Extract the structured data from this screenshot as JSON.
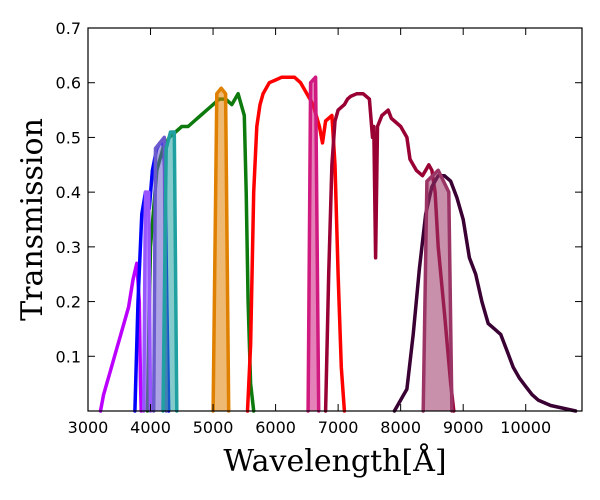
{
  "chart_data": {
    "type": "area",
    "title": "",
    "xlabel": "Wavelength[Å]",
    "ylabel": "Transmission",
    "xlim": [
      3000,
      10900
    ],
    "ylim": [
      0.0,
      0.7
    ],
    "xticks": [
      3000,
      4000,
      5000,
      6000,
      7000,
      8000,
      9000,
      10000
    ],
    "yticks": [
      0.1,
      0.2,
      0.3,
      0.4,
      0.5,
      0.6,
      0.7
    ],
    "grid": false,
    "legend": "none",
    "series": [
      {
        "kind": "broad",
        "color": "#bb00ff",
        "filled": false,
        "points": [
          [
            3200,
            0
          ],
          [
            3250,
            0.03
          ],
          [
            3350,
            0.07
          ],
          [
            3450,
            0.11
          ],
          [
            3550,
            0.15
          ],
          [
            3650,
            0.19
          ],
          [
            3720,
            0.24
          ],
          [
            3780,
            0.27
          ],
          [
            3820,
            0.2
          ],
          [
            3840,
            0.05
          ],
          [
            3850,
            0
          ]
        ]
      },
      {
        "kind": "broad",
        "color": "#0000ff",
        "filled": false,
        "points": [
          [
            3750,
            0
          ],
          [
            3800,
            0.2
          ],
          [
            3860,
            0.36
          ],
          [
            3920,
            0.4
          ],
          [
            3980,
            0.37
          ],
          [
            4030,
            0.44
          ],
          [
            4100,
            0.48
          ],
          [
            4150,
            0.49
          ],
          [
            4200,
            0.49
          ],
          [
            4230,
            0.44
          ],
          [
            4260,
            0.2
          ],
          [
            4290,
            0
          ]
        ]
      },
      {
        "kind": "broad",
        "color": "#0d7a0d",
        "filled": false,
        "points": [
          [
            3950,
            0
          ],
          [
            4000,
            0.3
          ],
          [
            4100,
            0.44
          ],
          [
            4200,
            0.48
          ],
          [
            4300,
            0.5
          ],
          [
            4400,
            0.51
          ],
          [
            4500,
            0.52
          ],
          [
            4600,
            0.52
          ],
          [
            4700,
            0.53
          ],
          [
            4800,
            0.54
          ],
          [
            4900,
            0.55
          ],
          [
            5000,
            0.56
          ],
          [
            5100,
            0.57
          ],
          [
            5200,
            0.57
          ],
          [
            5300,
            0.56
          ],
          [
            5400,
            0.58
          ],
          [
            5450,
            0.56
          ],
          [
            5500,
            0.54
          ],
          [
            5530,
            0.4
          ],
          [
            5560,
            0.2
          ],
          [
            5600,
            0.05
          ],
          [
            5650,
            0
          ]
        ]
      },
      {
        "kind": "broad",
        "color": "#ff0000",
        "filled": false,
        "points": [
          [
            5550,
            0
          ],
          [
            5600,
            0.12
          ],
          [
            5650,
            0.4
          ],
          [
            5700,
            0.52
          ],
          [
            5750,
            0.56
          ],
          [
            5800,
            0.58
          ],
          [
            5900,
            0.6
          ],
          [
            6000,
            0.605
          ],
          [
            6100,
            0.61
          ],
          [
            6200,
            0.61
          ],
          [
            6300,
            0.61
          ],
          [
            6400,
            0.6
          ],
          [
            6500,
            0.58
          ],
          [
            6600,
            0.56
          ],
          [
            6700,
            0.52
          ],
          [
            6750,
            0.49
          ],
          [
            6800,
            0.53
          ],
          [
            6900,
            0.54
          ],
          [
            6950,
            0.45
          ],
          [
            7000,
            0.25
          ],
          [
            7050,
            0.08
          ],
          [
            7100,
            0
          ]
        ]
      },
      {
        "kind": "broad",
        "color": "#990033",
        "filled": false,
        "points": [
          [
            6800,
            0
          ],
          [
            6850,
            0.25
          ],
          [
            6900,
            0.45
          ],
          [
            6950,
            0.53
          ],
          [
            7000,
            0.55
          ],
          [
            7100,
            0.56
          ],
          [
            7150,
            0.57
          ],
          [
            7200,
            0.575
          ],
          [
            7300,
            0.58
          ],
          [
            7400,
            0.58
          ],
          [
            7500,
            0.57
          ],
          [
            7550,
            0.5
          ],
          [
            7570,
            0.52
          ],
          [
            7600,
            0.28
          ],
          [
            7630,
            0.52
          ],
          [
            7700,
            0.54
          ],
          [
            7800,
            0.55
          ],
          [
            7850,
            0.535
          ],
          [
            7900,
            0.53
          ],
          [
            8000,
            0.52
          ],
          [
            8100,
            0.5
          ],
          [
            8150,
            0.46
          ],
          [
            8250,
            0.44
          ],
          [
            8350,
            0.43
          ],
          [
            8400,
            0.44
          ],
          [
            8450,
            0.45
          ],
          [
            8500,
            0.44
          ],
          [
            8550,
            0.4
          ],
          [
            8600,
            0.3
          ],
          [
            8700,
            0.18
          ],
          [
            8800,
            0.05
          ],
          [
            8850,
            0
          ]
        ]
      },
      {
        "kind": "broad",
        "color": "#3a0033",
        "filled": false,
        "points": [
          [
            7900,
            0
          ],
          [
            8100,
            0.04
          ],
          [
            8200,
            0.14
          ],
          [
            8300,
            0.26
          ],
          [
            8400,
            0.36
          ],
          [
            8500,
            0.41
          ],
          [
            8600,
            0.43
          ],
          [
            8700,
            0.43
          ],
          [
            8800,
            0.42
          ],
          [
            8900,
            0.39
          ],
          [
            9000,
            0.35
          ],
          [
            9100,
            0.28
          ],
          [
            9200,
            0.25
          ],
          [
            9300,
            0.2
          ],
          [
            9400,
            0.16
          ],
          [
            9500,
            0.15
          ],
          [
            9600,
            0.14
          ],
          [
            9700,
            0.11
          ],
          [
            9800,
            0.08
          ],
          [
            9900,
            0.06
          ],
          [
            10000,
            0.045
          ],
          [
            10100,
            0.03
          ],
          [
            10200,
            0.02
          ],
          [
            10400,
            0.01
          ],
          [
            10800,
            0
          ]
        ]
      },
      {
        "kind": "narrow",
        "color": "#9955ff",
        "filled": true,
        "points": [
          [
            3890,
            0
          ],
          [
            3920,
            0.4
          ],
          [
            3970,
            0.4
          ],
          [
            4000,
            0
          ]
        ]
      },
      {
        "kind": "narrow",
        "color": "#6a5acd",
        "filled": true,
        "points": [
          [
            4050,
            0
          ],
          [
            4080,
            0.48
          ],
          [
            4220,
            0.5
          ],
          [
            4250,
            0
          ]
        ]
      },
      {
        "kind": "narrow",
        "color": "#20a0a0",
        "filled": true,
        "points": [
          [
            4200,
            0
          ],
          [
            4250,
            0.48
          ],
          [
            4320,
            0.51
          ],
          [
            4380,
            0.51
          ],
          [
            4420,
            0
          ]
        ]
      },
      {
        "kind": "narrow",
        "color": "#e08000",
        "filled": true,
        "points": [
          [
            5000,
            0
          ],
          [
            5060,
            0.58
          ],
          [
            5130,
            0.59
          ],
          [
            5200,
            0.58
          ],
          [
            5250,
            0
          ]
        ]
      },
      {
        "kind": "narrow",
        "color": "#d01a80",
        "filled": true,
        "points": [
          [
            6520,
            0
          ],
          [
            6560,
            0.6
          ],
          [
            6640,
            0.61
          ],
          [
            6690,
            0
          ]
        ]
      },
      {
        "kind": "narrow",
        "color": "#9b3566",
        "filled": true,
        "points": [
          [
            8360,
            0
          ],
          [
            8420,
            0.42
          ],
          [
            8600,
            0.44
          ],
          [
            8770,
            0.4
          ],
          [
            8820,
            0
          ]
        ]
      }
    ]
  }
}
